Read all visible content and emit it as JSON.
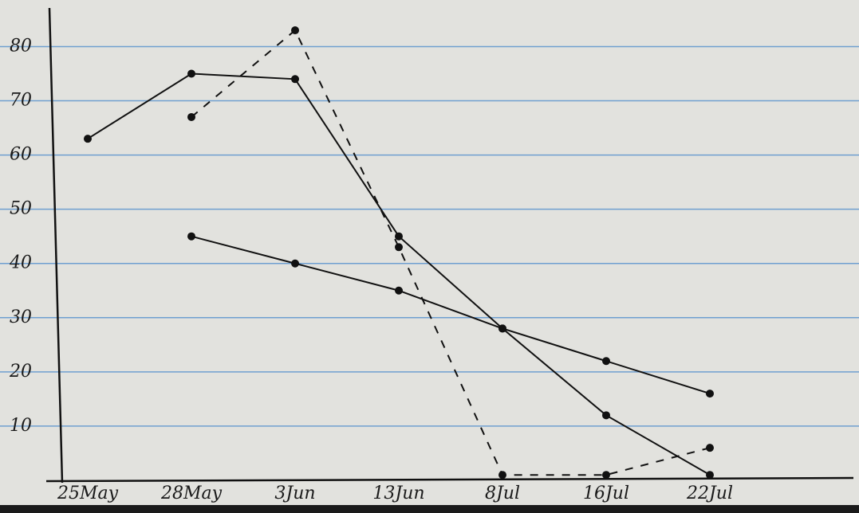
{
  "chart_data": {
    "type": "line",
    "categories": [
      "25May",
      "28May",
      "3Jun",
      "13Jun",
      "8Jul",
      "16Jul",
      "22Jul"
    ],
    "series": [
      {
        "color": "#111111",
        "dash": false,
        "values": [
          63,
          75,
          74,
          45,
          28,
          12,
          1
        ]
      },
      {
        "color": "#111111",
        "dash": true,
        "values": [
          null,
          67,
          83,
          43,
          1,
          1,
          6
        ]
      },
      {
        "color": "#111111",
        "dash": false,
        "values": [
          null,
          45,
          40,
          35,
          28,
          22,
          16
        ]
      }
    ],
    "ylim": [
      0,
      88
    ],
    "yticks": [
      10,
      20,
      30,
      40,
      50,
      60,
      70,
      80
    ],
    "grid": true,
    "grid_color": "#6f9fd0"
  }
}
